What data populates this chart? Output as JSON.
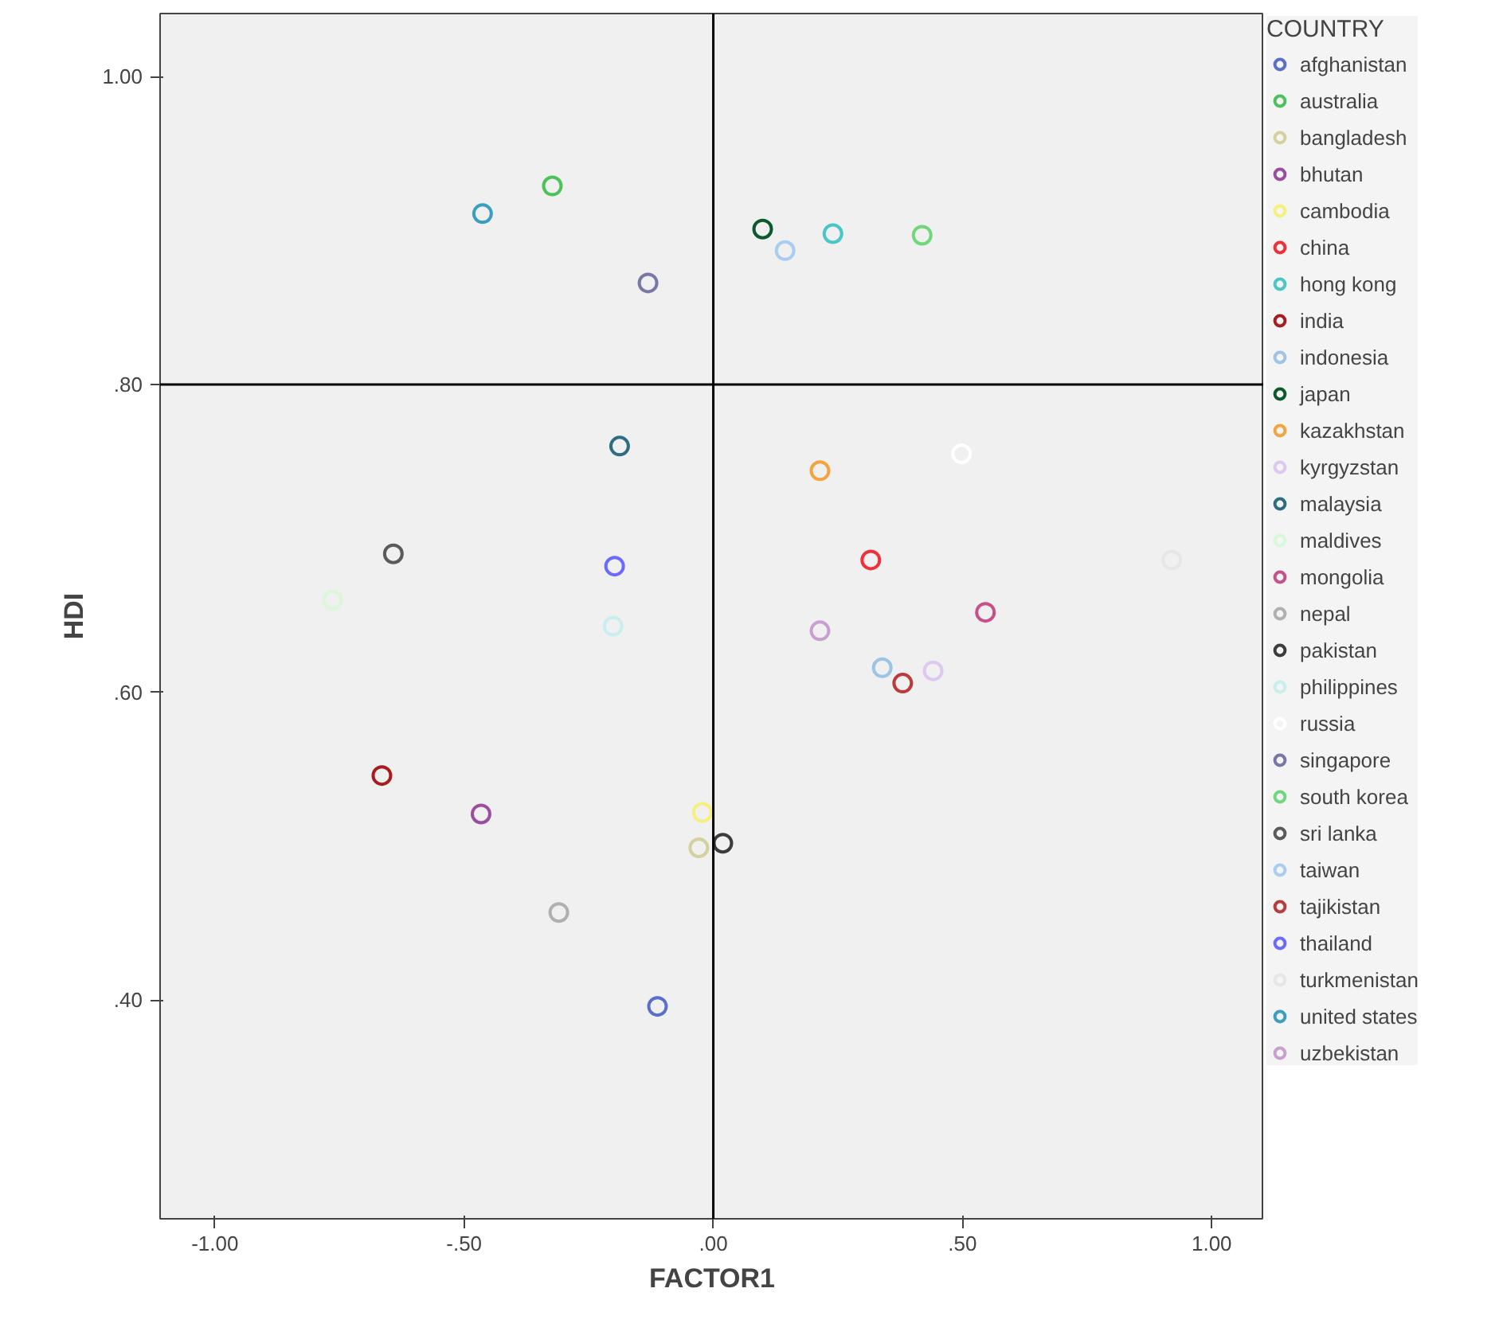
{
  "chart_data": {
    "type": "scatter",
    "xlabel": "FACTOR1",
    "ylabel": "HDI",
    "legend_title": "COUNTRY",
    "xlim": [
      -1.11,
      1.105
    ],
    "ylim": [
      0.258,
      1.041
    ],
    "xticks": [
      {
        "value": -1,
        "label": "-1.00"
      },
      {
        "value": -0.5,
        "label": "-.50"
      },
      {
        "value": 0,
        "label": ".00"
      },
      {
        "value": 0.5,
        "label": ".50"
      },
      {
        "value": 1,
        "label": "1.00"
      }
    ],
    "yticks": [
      {
        "value": 0.4,
        "label": ".40"
      },
      {
        "value": 0.6,
        "label": ".60"
      },
      {
        "value": 0.8,
        "label": ".80"
      },
      {
        "value": 1,
        "label": "1.00"
      }
    ],
    "grid": false,
    "legend": "right",
    "marker": "circle",
    "ref_lines": [
      {
        "axis": "x",
        "value": 0
      },
      {
        "axis": "y",
        "value": 0.8
      }
    ],
    "series": [
      {
        "name": "afghanistan",
        "color": "#5a6fc8",
        "x": [
          -0.112
        ],
        "values": [
          0.396
        ]
      },
      {
        "name": "australia",
        "color": "#4cc35a",
        "x": [
          -0.323
        ],
        "values": [
          0.929
        ]
      },
      {
        "name": "bangladesh",
        "color": "#d4d0a0",
        "x": [
          -0.029
        ],
        "values": [
          0.499
        ]
      },
      {
        "name": "bhutan",
        "color": "#9b4ea0",
        "x": [
          -0.466
        ],
        "values": [
          0.521
        ]
      },
      {
        "name": "cambodia",
        "color": "#f5f07a",
        "x": [
          -0.022
        ],
        "values": [
          0.522
        ]
      },
      {
        "name": "china",
        "color": "#ee3038",
        "x": [
          0.316
        ],
        "values": [
          0.686
        ]
      },
      {
        "name": "hong kong",
        "color": "#4ac6c6",
        "x": [
          0.24
        ],
        "values": [
          0.898
        ]
      },
      {
        "name": "india",
        "color": "#a81c20",
        "x": [
          -0.665
        ],
        "values": [
          0.546
        ]
      },
      {
        "name": "indonesia",
        "color": "#9dc3e6",
        "x": [
          0.339
        ],
        "values": [
          0.616
        ]
      },
      {
        "name": "japan",
        "color": "#0a5a2e",
        "x": [
          0.099
        ],
        "values": [
          0.901
        ]
      },
      {
        "name": "kazakhstan",
        "color": "#f5a340",
        "x": [
          0.214
        ],
        "values": [
          0.744
        ]
      },
      {
        "name": "kyrgyzstan",
        "color": "#dcc8f0",
        "x": [
          0.441
        ],
        "values": [
          0.614
        ]
      },
      {
        "name": "malaysia",
        "color": "#2e6e82",
        "x": [
          -0.188
        ],
        "values": [
          0.76
        ]
      },
      {
        "name": "maldives",
        "color": "#d8f8d8",
        "x": [
          -0.764
        ],
        "values": [
          0.66
        ]
      },
      {
        "name": "mongolia",
        "color": "#c8508a",
        "x": [
          0.546
        ],
        "values": [
          0.652
        ]
      },
      {
        "name": "nepal",
        "color": "#b0b0b0",
        "x": [
          -0.31
        ],
        "values": [
          0.457
        ]
      },
      {
        "name": "pakistan",
        "color": "#3c3c3c",
        "x": [
          0.019
        ],
        "values": [
          0.502
        ]
      },
      {
        "name": "philippines",
        "color": "#c8eeee",
        "x": [
          -0.201
        ],
        "values": [
          0.643
        ]
      },
      {
        "name": "russia",
        "color": "#ffffff",
        "x": [
          0.498
        ],
        "values": [
          0.755
        ]
      },
      {
        "name": "singapore",
        "color": "#7878a8",
        "x": [
          -0.131
        ],
        "values": [
          0.866
        ]
      },
      {
        "name": "south korea",
        "color": "#6ed87a",
        "x": [
          0.419
        ],
        "values": [
          0.897
        ]
      },
      {
        "name": "sri lanka",
        "color": "#5a5a5a",
        "x": [
          -0.642
        ],
        "values": [
          0.69
        ]
      },
      {
        "name": "taiwan",
        "color": "#a8cdf0",
        "x": [
          0.144
        ],
        "values": [
          0.887
        ]
      },
      {
        "name": "tajikistan",
        "color": "#b83c3c",
        "x": [
          0.38
        ],
        "values": [
          0.606
        ]
      },
      {
        "name": "thailand",
        "color": "#6a6aff",
        "x": [
          -0.198
        ],
        "values": [
          0.682
        ]
      },
      {
        "name": "turkmenistan",
        "color": "#e6e6e6",
        "x": [
          0.92
        ],
        "values": [
          0.686
        ]
      },
      {
        "name": "united states",
        "color": "#3a9ec2",
        "x": [
          -0.463
        ],
        "values": [
          0.911
        ]
      },
      {
        "name": "uzbekistan",
        "color": "#c8a0d0",
        "x": [
          0.214
        ],
        "values": [
          0.64
        ]
      }
    ]
  }
}
